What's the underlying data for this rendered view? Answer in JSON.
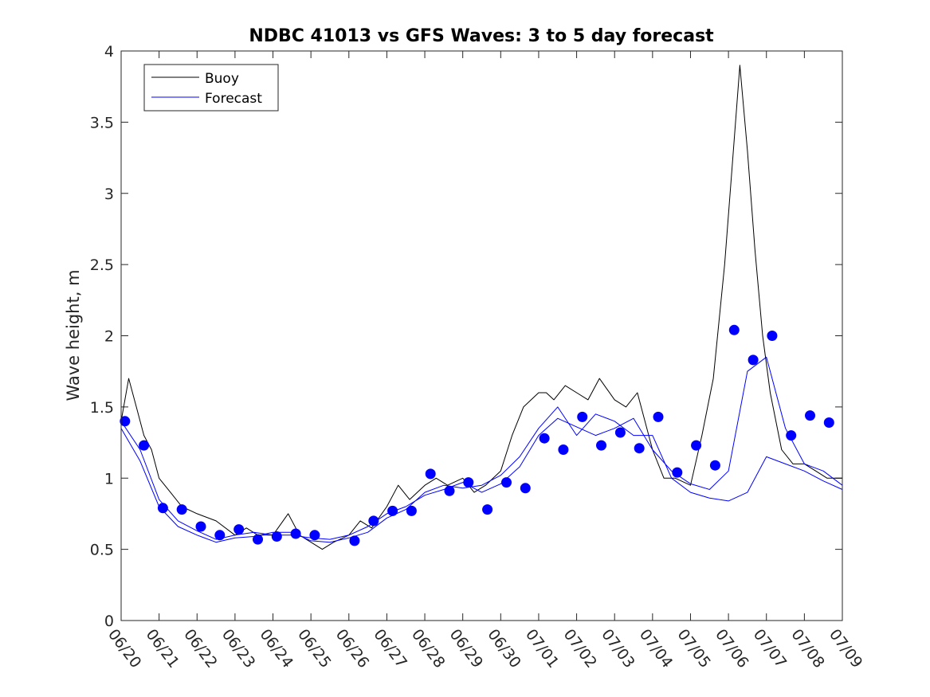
{
  "chart_data": {
    "type": "line",
    "title": "NDBC 41013 vs GFS Waves: 3 to 5 day forecast",
    "xlabel": "",
    "ylabel": "Wave height, m",
    "ylim": [
      0,
      4
    ],
    "yticks": [
      0,
      0.5,
      1,
      1.5,
      2,
      2.5,
      3,
      3.5,
      4
    ],
    "ytick_labels": [
      "0",
      "0.5",
      "1",
      "1.5",
      "2",
      "2.5",
      "3",
      "3.5",
      "4"
    ],
    "x_ticks": [
      "06/20",
      "06/21",
      "06/22",
      "06/23",
      "06/24",
      "06/25",
      "06/26",
      "06/27",
      "06/28",
      "06/29",
      "06/30",
      "07/01",
      "07/02",
      "07/03",
      "07/04",
      "07/05",
      "07/06",
      "07/07",
      "07/08",
      "07/09"
    ],
    "x_unit": "days since 06/20",
    "xlim": [
      0,
      19
    ],
    "legend": {
      "position": "top-left",
      "entries": [
        "Buoy",
        "Forecast"
      ]
    },
    "colors": {
      "buoy": "#000000",
      "forecast": "#0000ff",
      "axis": "#262626"
    },
    "series": [
      {
        "name": "Buoy",
        "color": "#000000",
        "x": [
          0,
          0.2,
          0.4,
          0.6,
          0.8,
          1.0,
          1.3,
          1.6,
          2.0,
          2.5,
          3.0,
          3.3,
          3.6,
          4.0,
          4.4,
          4.7,
          5.0,
          5.3,
          5.6,
          6.0,
          6.3,
          6.6,
          7.0,
          7.3,
          7.6,
          8.0,
          8.3,
          8.6,
          9.0,
          9.3,
          9.6,
          10.0,
          10.3,
          10.6,
          11.0,
          11.2,
          11.4,
          11.7,
          12.0,
          12.3,
          12.6,
          13.0,
          13.3,
          13.6,
          14.0,
          14.3,
          14.6,
          15.0,
          15.3,
          15.6,
          15.9,
          16.1,
          16.3,
          16.5,
          16.7,
          16.9,
          17.1,
          17.4,
          17.7,
          18.0,
          18.3,
          18.6,
          19.0
        ],
        "y": [
          1.4,
          1.7,
          1.5,
          1.3,
          1.2,
          1.0,
          0.9,
          0.8,
          0.75,
          0.7,
          0.6,
          0.65,
          0.6,
          0.6,
          0.75,
          0.6,
          0.55,
          0.5,
          0.55,
          0.6,
          0.7,
          0.65,
          0.8,
          0.95,
          0.85,
          0.95,
          1.0,
          0.95,
          1.0,
          0.9,
          0.95,
          1.05,
          1.3,
          1.5,
          1.6,
          1.6,
          1.55,
          1.65,
          1.6,
          1.55,
          1.7,
          1.55,
          1.5,
          1.6,
          1.2,
          1.0,
          1.0,
          0.95,
          1.3,
          1.7,
          2.5,
          3.2,
          3.9,
          3.3,
          2.6,
          2.0,
          1.6,
          1.2,
          1.1,
          1.1,
          1.05,
          1.0,
          1.0
        ]
      },
      {
        "name": "Forecast",
        "color": "#0000ff",
        "x": [
          0,
          0.5,
          1.0,
          1.5,
          2.0,
          2.5,
          3.0,
          3.5,
          4.0,
          4.5,
          5.0,
          5.5,
          6.0,
          6.5,
          7.0,
          7.5,
          8.0,
          8.5,
          9.0,
          9.5,
          10.0,
          10.5,
          11.0,
          11.5,
          12.0,
          12.5,
          13.0,
          13.5,
          14.0,
          14.5,
          15.0,
          15.5,
          16.0,
          16.5,
          17.0,
          17.5,
          18.0,
          18.5,
          19.0
        ],
        "y": [
          1.4,
          1.2,
          0.85,
          0.7,
          0.63,
          0.57,
          0.6,
          0.62,
          0.6,
          0.6,
          0.58,
          0.57,
          0.6,
          0.66,
          0.75,
          0.8,
          0.88,
          0.92,
          0.97,
          0.9,
          0.96,
          1.08,
          1.3,
          1.42,
          1.36,
          1.3,
          1.35,
          1.42,
          1.2,
          1.05,
          0.96,
          0.92,
          1.05,
          1.75,
          1.85,
          1.35,
          1.1,
          1.05,
          0.95
        ]
      },
      {
        "name": "Forecast",
        "color": "#0000ff",
        "x": [
          0,
          0.5,
          1.0,
          1.5,
          2.0,
          2.5,
          3.0,
          3.5,
          4.0,
          4.5,
          5.0,
          5.5,
          6.0,
          6.5,
          7.0,
          7.5,
          8.0,
          8.5,
          9.0,
          9.5,
          10.0,
          10.5,
          11.0,
          11.5,
          12.0,
          12.5,
          13.0,
          13.5,
          14.0,
          14.5,
          15.0,
          15.5,
          16.0,
          16.5,
          17.0,
          17.5,
          18.0,
          18.5,
          19.0
        ],
        "y": [
          1.35,
          1.12,
          0.8,
          0.66,
          0.6,
          0.55,
          0.58,
          0.59,
          0.62,
          0.62,
          0.56,
          0.55,
          0.58,
          0.62,
          0.72,
          0.78,
          0.9,
          0.95,
          0.93,
          0.95,
          1.02,
          1.15,
          1.35,
          1.5,
          1.3,
          1.45,
          1.4,
          1.3,
          1.3,
          1.0,
          0.9,
          0.86,
          0.84,
          0.9,
          1.15,
          1.1,
          1.05,
          0.98,
          0.92
        ]
      }
    ],
    "markers": {
      "name": "Forecast",
      "color": "#0000ff",
      "x": [
        0.1,
        0.6,
        1.1,
        1.6,
        2.1,
        2.6,
        3.1,
        3.6,
        4.1,
        4.6,
        5.1,
        6.15,
        6.65,
        7.15,
        7.65,
        8.15,
        8.65,
        9.15,
        9.65,
        10.15,
        10.65,
        11.15,
        11.65,
        12.15,
        12.65,
        13.15,
        13.65,
        14.15,
        14.65,
        15.15,
        15.65,
        16.15,
        16.65,
        17.15,
        17.65,
        18.15,
        18.65
      ],
      "y": [
        1.4,
        1.23,
        0.79,
        0.78,
        0.66,
        0.6,
        0.64,
        0.57,
        0.59,
        0.61,
        0.6,
        0.56,
        0.7,
        0.77,
        0.77,
        1.03,
        0.91,
        0.97,
        0.78,
        0.97,
        0.93,
        1.28,
        1.2,
        1.43,
        1.23,
        1.32,
        1.21,
        1.43,
        1.04,
        1.23,
        1.09,
        2.04,
        1.83,
        2.0,
        1.3,
        1.44,
        1.39
      ]
    }
  }
}
